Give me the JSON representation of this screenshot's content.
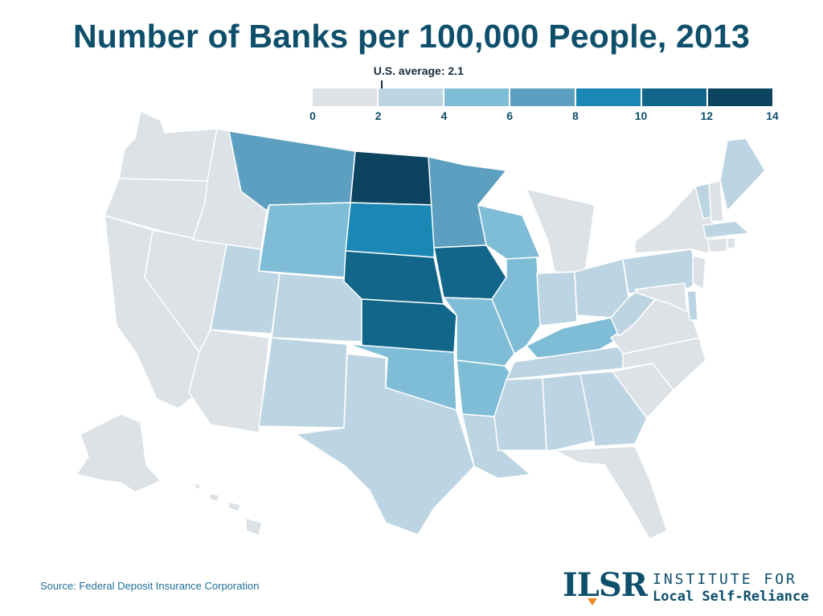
{
  "title": "Number of Banks per 100,000 People, 2013",
  "legend": {
    "avg_label": "U.S. average: 2.1",
    "avg_value": 2.1,
    "min": 0,
    "max": 14,
    "ticks": [
      "0",
      "2",
      "4",
      "6",
      "8",
      "10",
      "12",
      "14"
    ],
    "colors": [
      "#dde2e7",
      "#bdd5e2",
      "#7fbdd7",
      "#5d9fc0",
      "#1a87b5",
      "#11668a",
      "#0c4460"
    ]
  },
  "states": [
    {
      "name": "Washington",
      "bin": 0
    },
    {
      "name": "Oregon",
      "bin": 0
    },
    {
      "name": "California",
      "bin": 0
    },
    {
      "name": "Nevada",
      "bin": 0
    },
    {
      "name": "Idaho",
      "bin": 0
    },
    {
      "name": "Arizona",
      "bin": 0
    },
    {
      "name": "Montana",
      "bin": 3
    },
    {
      "name": "Wyoming",
      "bin": 2
    },
    {
      "name": "Utah",
      "bin": 1
    },
    {
      "name": "Colorado",
      "bin": 1
    },
    {
      "name": "New Mexico",
      "bin": 1
    },
    {
      "name": "North Dakota",
      "bin": 6
    },
    {
      "name": "South Dakota",
      "bin": 4
    },
    {
      "name": "Nebraska",
      "bin": 5
    },
    {
      "name": "Kansas",
      "bin": 5
    },
    {
      "name": "Oklahoma",
      "bin": 2
    },
    {
      "name": "Texas",
      "bin": 1
    },
    {
      "name": "Minnesota",
      "bin": 3
    },
    {
      "name": "Iowa",
      "bin": 5
    },
    {
      "name": "Missouri",
      "bin": 2
    },
    {
      "name": "Arkansas",
      "bin": 2
    },
    {
      "name": "Louisiana",
      "bin": 1
    },
    {
      "name": "Wisconsin",
      "bin": 2
    },
    {
      "name": "Illinois",
      "bin": 2
    },
    {
      "name": "Michigan",
      "bin": 0
    },
    {
      "name": "Indiana",
      "bin": 1
    },
    {
      "name": "Ohio",
      "bin": 1
    },
    {
      "name": "Kentucky",
      "bin": 2
    },
    {
      "name": "Tennessee",
      "bin": 1
    },
    {
      "name": "Mississippi",
      "bin": 1
    },
    {
      "name": "Alabama",
      "bin": 1
    },
    {
      "name": "Georgia",
      "bin": 1
    },
    {
      "name": "Florida",
      "bin": 0
    },
    {
      "name": "South Carolina",
      "bin": 0
    },
    {
      "name": "North Carolina",
      "bin": 0
    },
    {
      "name": "Virginia",
      "bin": 0
    },
    {
      "name": "West Virginia",
      "bin": 1
    },
    {
      "name": "Pennsylvania",
      "bin": 1
    },
    {
      "name": "New York",
      "bin": 0
    },
    {
      "name": "Vermont",
      "bin": 1
    },
    {
      "name": "New Hampshire",
      "bin": 0
    },
    {
      "name": "Maine",
      "bin": 1
    },
    {
      "name": "Massachusetts",
      "bin": 1
    },
    {
      "name": "Connecticut",
      "bin": 0
    },
    {
      "name": "Rhode Island",
      "bin": 0
    },
    {
      "name": "New Jersey",
      "bin": 0
    },
    {
      "name": "Delaware",
      "bin": 1
    },
    {
      "name": "Maryland",
      "bin": 0
    },
    {
      "name": "Alaska",
      "bin": 0
    },
    {
      "name": "Hawaii",
      "bin": 0
    }
  ],
  "source": "Source: Federal Deposit Insurance Corporation",
  "logo": {
    "mark": "ILSR",
    "line1": "INSTITUTE FOR",
    "line2": "Local Self-Reliance"
  }
}
